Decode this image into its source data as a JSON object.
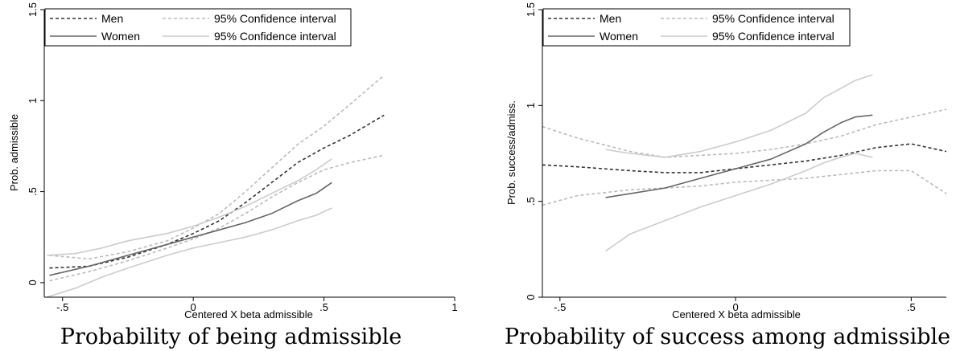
{
  "chart_data": [
    {
      "type": "line",
      "caption": "Probability of being admissible",
      "xlabel": "Centered X beta admissible",
      "ylabel": "Prob. admissible",
      "xlim": [
        -0.57,
        1.0
      ],
      "ylim": [
        -0.08,
        1.5
      ],
      "x_ticks": [
        -0.5,
        0,
        0.5,
        1
      ],
      "x_tick_labels": [
        "-.5",
        "0",
        ".5",
        "1"
      ],
      "y_ticks": [
        0,
        0.5,
        1,
        1.5
      ],
      "y_tick_labels": [
        "0",
        ".5",
        "1",
        "1.5"
      ],
      "legend_position": "top-left",
      "series": [
        {
          "name": "Men",
          "style": "dashed",
          "color": "#333333",
          "legend": true,
          "x": [
            -0.55,
            -0.4,
            -0.25,
            -0.1,
            0.0,
            0.1,
            0.2,
            0.3,
            0.4,
            0.5,
            0.6,
            0.73
          ],
          "y": [
            0.08,
            0.09,
            0.14,
            0.21,
            0.27,
            0.34,
            0.44,
            0.55,
            0.66,
            0.74,
            0.81,
            0.92
          ]
        },
        {
          "name": "95% Confidence interval",
          "style": "dashed",
          "color": "#bbbbbb",
          "legend": true,
          "x": [
            -0.55,
            -0.4,
            -0.25,
            -0.1,
            0.0,
            0.1,
            0.2,
            0.3,
            0.4,
            0.5,
            0.6,
            0.73
          ],
          "y": [
            0.01,
            0.06,
            0.12,
            0.19,
            0.24,
            0.3,
            0.38,
            0.47,
            0.55,
            0.62,
            0.66,
            0.7
          ]
        },
        {
          "name": "95% Confidence interval",
          "style": "dashed",
          "color": "#bbbbbb",
          "legend": false,
          "x": [
            -0.55,
            -0.4,
            -0.25,
            -0.1,
            0.0,
            0.1,
            0.2,
            0.3,
            0.4,
            0.5,
            0.6,
            0.73
          ],
          "y": [
            0.15,
            0.13,
            0.17,
            0.23,
            0.3,
            0.38,
            0.5,
            0.63,
            0.76,
            0.86,
            0.98,
            1.14
          ]
        },
        {
          "name": "Women",
          "style": "solid",
          "color": "#666666",
          "legend": true,
          "x": [
            -0.55,
            -0.4,
            -0.25,
            -0.1,
            0.0,
            0.1,
            0.2,
            0.3,
            0.4,
            0.47,
            0.53
          ],
          "y": [
            0.04,
            0.09,
            0.15,
            0.21,
            0.25,
            0.29,
            0.33,
            0.38,
            0.45,
            0.49,
            0.55
          ]
        },
        {
          "name": "95% Confidence interval",
          "style": "solid",
          "color": "#cccccc",
          "legend": true,
          "x": [
            -0.56,
            -0.45,
            -0.35,
            -0.25,
            -0.1,
            0.0,
            0.1,
            0.2,
            0.3,
            0.4,
            0.47,
            0.53
          ],
          "y": [
            -0.08,
            -0.03,
            0.03,
            0.08,
            0.15,
            0.19,
            0.22,
            0.25,
            0.29,
            0.34,
            0.37,
            0.41
          ]
        },
        {
          "name": "95% Confidence interval",
          "style": "solid",
          "color": "#cccccc",
          "legend": false,
          "x": [
            -0.56,
            -0.45,
            -0.35,
            -0.25,
            -0.1,
            0.0,
            0.1,
            0.2,
            0.3,
            0.4,
            0.47,
            0.53
          ],
          "y": [
            0.15,
            0.16,
            0.19,
            0.23,
            0.27,
            0.31,
            0.36,
            0.42,
            0.49,
            0.56,
            0.62,
            0.68
          ]
        }
      ]
    },
    {
      "type": "line",
      "caption": "Probability of success among admissible",
      "xlabel": "Centered X beta admissible",
      "ylabel": "Prob. success/admiss.",
      "xlim": [
        -0.55,
        0.6
      ],
      "ylim": [
        0.0,
        1.5
      ],
      "x_ticks": [
        -0.5,
        0,
        0.5
      ],
      "x_tick_labels": [
        "-.5",
        "0",
        ".5"
      ],
      "y_ticks": [
        0,
        0.5,
        1,
        1.5
      ],
      "y_tick_labels": [
        "0",
        ".5",
        "1",
        "1.5"
      ],
      "legend_position": "top-left",
      "series": [
        {
          "name": "Men",
          "style": "dashed",
          "color": "#333333",
          "legend": true,
          "x": [
            -0.55,
            -0.45,
            -0.3,
            -0.2,
            -0.1,
            0.0,
            0.1,
            0.2,
            0.3,
            0.4,
            0.5,
            0.6
          ],
          "y": [
            0.69,
            0.68,
            0.66,
            0.65,
            0.65,
            0.67,
            0.69,
            0.71,
            0.74,
            0.78,
            0.8,
            0.76
          ]
        },
        {
          "name": "95% Confidence interval",
          "style": "dashed",
          "color": "#bbbbbb",
          "legend": true,
          "x": [
            -0.55,
            -0.45,
            -0.3,
            -0.2,
            -0.1,
            0.0,
            0.1,
            0.2,
            0.3,
            0.4,
            0.5,
            0.6
          ],
          "y": [
            0.89,
            0.83,
            0.76,
            0.73,
            0.74,
            0.75,
            0.77,
            0.8,
            0.84,
            0.9,
            0.94,
            0.98
          ]
        },
        {
          "name": "95% Confidence interval",
          "style": "dashed",
          "color": "#bbbbbb",
          "legend": false,
          "x": [
            -0.55,
            -0.45,
            -0.3,
            -0.2,
            -0.1,
            0.0,
            0.1,
            0.2,
            0.3,
            0.4,
            0.5,
            0.6
          ],
          "y": [
            0.48,
            0.53,
            0.56,
            0.57,
            0.58,
            0.6,
            0.61,
            0.62,
            0.64,
            0.66,
            0.66,
            0.54
          ]
        },
        {
          "name": "Women",
          "style": "solid",
          "color": "#666666",
          "legend": true,
          "x": [
            -0.37,
            -0.3,
            -0.2,
            -0.1,
            0.0,
            0.1,
            0.2,
            0.25,
            0.3,
            0.34,
            0.39
          ],
          "y": [
            0.52,
            0.54,
            0.57,
            0.62,
            0.67,
            0.72,
            0.8,
            0.86,
            0.91,
            0.94,
            0.95
          ]
        },
        {
          "name": "95% Confidence interval",
          "style": "solid",
          "color": "#cccccc",
          "legend": true,
          "x": [
            -0.37,
            -0.3,
            -0.2,
            -0.1,
            0.0,
            0.1,
            0.2,
            0.25,
            0.3,
            0.34,
            0.39
          ],
          "y": [
            0.24,
            0.33,
            0.4,
            0.47,
            0.53,
            0.59,
            0.66,
            0.7,
            0.73,
            0.75,
            0.73
          ]
        },
        {
          "name": "95% Confidence interval",
          "style": "solid",
          "color": "#cccccc",
          "legend": false,
          "x": [
            -0.37,
            -0.3,
            -0.2,
            -0.1,
            0.0,
            0.1,
            0.2,
            0.25,
            0.3,
            0.34,
            0.39
          ],
          "y": [
            0.77,
            0.75,
            0.73,
            0.76,
            0.81,
            0.87,
            0.96,
            1.04,
            1.09,
            1.13,
            1.16
          ]
        }
      ]
    }
  ]
}
